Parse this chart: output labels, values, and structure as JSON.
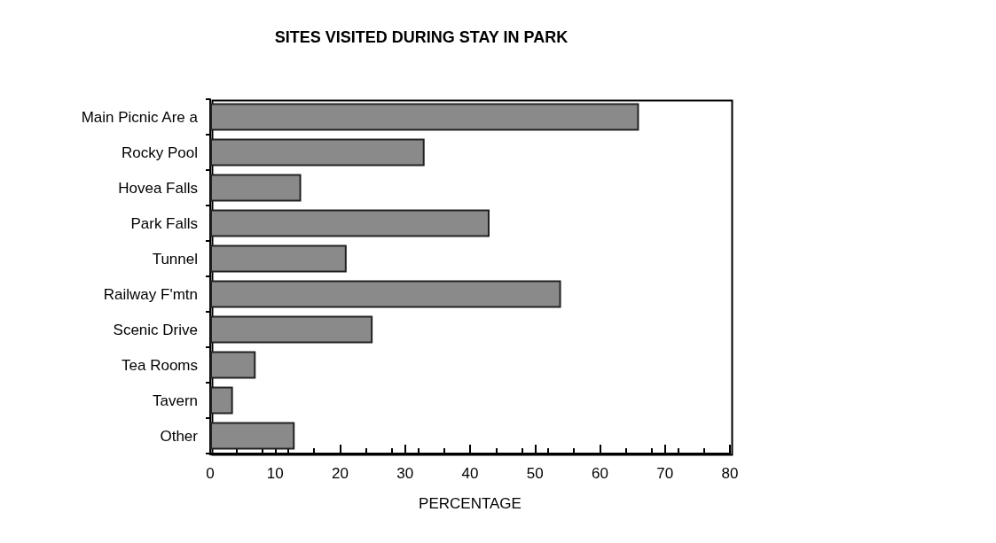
{
  "chart_data": {
    "type": "bar",
    "orientation": "horizontal",
    "title": "SITES VISITED DURING STAY IN PARK",
    "xlabel": "PERCENTAGE",
    "categories": [
      "Main Picnic Are a",
      "Rocky Pool",
      "Hovea Falls",
      "Park Falls",
      "Tunnel",
      "Railway F'mtn",
      "Scenic Drive",
      "Tea Rooms",
      "Tavern",
      "Other"
    ],
    "values": [
      66,
      33,
      14,
      43,
      21,
      54,
      25,
      7,
      3.5,
      13
    ],
    "color": "#8a8a8a",
    "xlim": [
      0,
      80
    ],
    "xticks": [
      0,
      10,
      20,
      30,
      40,
      50,
      60,
      70,
      80
    ],
    "grid": false
  }
}
